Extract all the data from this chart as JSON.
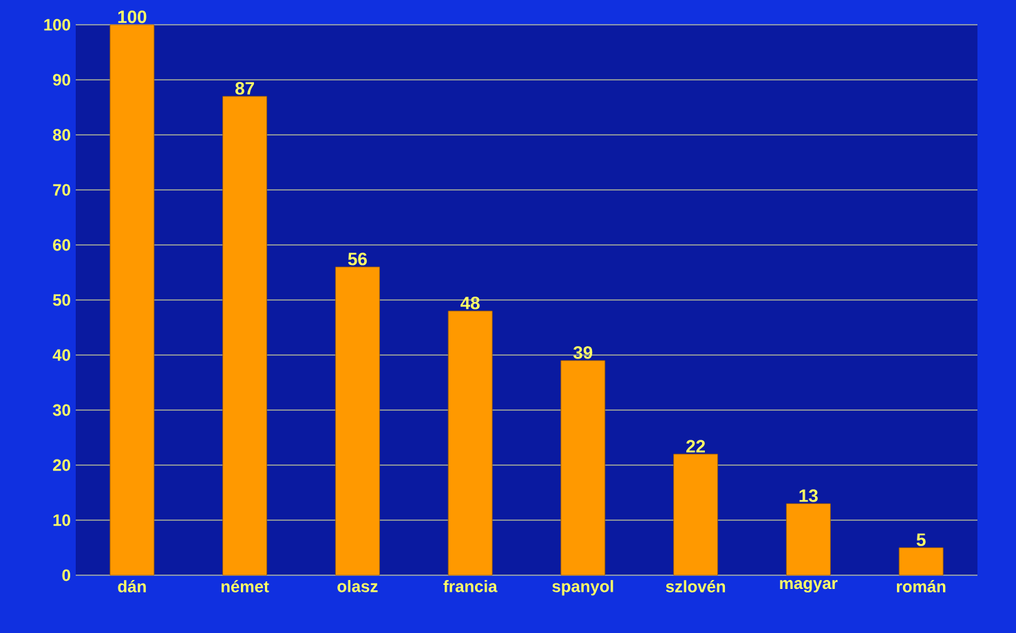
{
  "chart_data": {
    "type": "bar",
    "categories": [
      "dán",
      "német",
      "olasz",
      "francia",
      "spanyol",
      "szlovén",
      "magyar",
      "román"
    ],
    "values": [
      100,
      87,
      56,
      48,
      39,
      22,
      13,
      5
    ],
    "color": "#ff9900",
    "ylim": [
      0,
      100
    ],
    "yticks": [
      0,
      10,
      20,
      30,
      40,
      50,
      60,
      70,
      80,
      90,
      100
    ],
    "grid": "y",
    "data_labels": true
  }
}
